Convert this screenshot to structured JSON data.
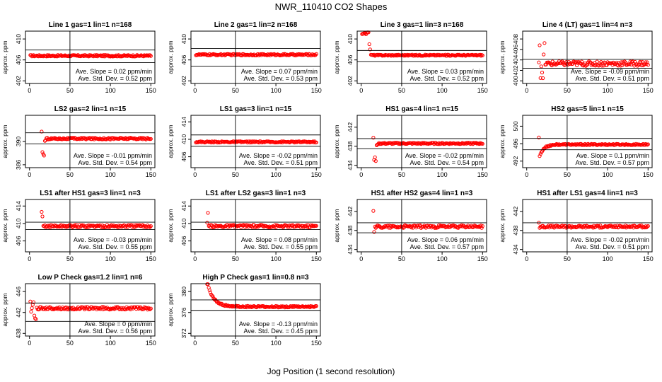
{
  "page": {
    "title": "NWR_110410  CO2 Shapes",
    "xlabel": "Jog Position (1 second resolution)"
  },
  "chart_data": [
    {
      "type": "scatter",
      "title": "Line 1 gas=1 lin=1 n=168",
      "ylabel": "approx. ppm",
      "xlim": [
        -5,
        155
      ],
      "ylim": [
        401.5,
        411.5
      ],
      "xticks": [
        0,
        50,
        100,
        150
      ],
      "yticks": [
        402,
        406,
        410
      ],
      "hlines": [
        407.9,
        405.5
      ],
      "vline": 50,
      "slope": "Ave. Slope =  0.02  ppm/min",
      "stddev": "Ave. Std. Dev. =  0.52  ppm",
      "shape": "flat",
      "start": 1,
      "base": 406.8,
      "noise": 0.15
    },
    {
      "type": "scatter",
      "title": "Line 2 gas=1 lin=2 n=168",
      "ylabel": "approx. ppm",
      "xlim": [
        -5,
        155
      ],
      "ylim": [
        401.5,
        411.5
      ],
      "xticks": [
        0,
        50,
        100,
        150
      ],
      "yticks": [
        402,
        406,
        410
      ],
      "hlines": [
        408.2,
        404.8
      ],
      "vline": 50,
      "slope": "Ave. Slope =  0.07  ppm/min",
      "stddev": "Ave. Std. Dev. =  0.53  ppm",
      "shape": "flat",
      "start": 1,
      "base": 407.0,
      "noise": 0.15
    },
    {
      "type": "scatter",
      "title": "Line 3 gas=1 lin=3 n=168",
      "ylabel": "approx. ppm",
      "xlim": [
        -5,
        155
      ],
      "ylim": [
        401.5,
        411.5
      ],
      "xticks": [
        0,
        50,
        100,
        150
      ],
      "yticks": [
        402,
        406,
        410
      ],
      "hlines": [
        407.8,
        405.7
      ],
      "vline": 50,
      "slope": "Ave. Slope =  0.03  ppm/min",
      "stddev": "Ave. Std. Dev. =  0.52  ppm",
      "shape": "spikeStart",
      "start": 1,
      "base": 406.9,
      "noise": 0.12
    },
    {
      "type": "scatter",
      "title": "Line 4 (LT) gas=1 lin=4 n=3",
      "ylabel": "approx. ppm",
      "xlim": [
        -5,
        155
      ],
      "ylim": [
        399.5,
        409.5
      ],
      "xticks": [
        0,
        50,
        100,
        150
      ],
      "yticks": [
        400,
        402,
        404,
        406,
        408
      ],
      "hlines": [
        404.1,
        402.4
      ],
      "vline": 50,
      "slope": "Ave. Slope = -0.09  ppm/min",
      "stddev": "Ave. Std. Dev. =  0.51  ppm",
      "shape": "scatterStart",
      "start": 15,
      "base": 403.3,
      "noise": 0.45
    },
    {
      "type": "scatter",
      "title": "LS2 gas=2 lin=1 n=15",
      "ylabel": "approx. ppm",
      "xlim": [
        -5,
        155
      ],
      "ylim": [
        385.5,
        394.5
      ],
      "xticks": [
        0,
        50,
        100,
        150
      ],
      "yticks": [
        386,
        390
      ],
      "hlines": [
        391.5,
        389.6
      ],
      "vline": 50,
      "slope": "Ave. Slope = -0.01  ppm/min",
      "stddev": "Ave. Std. Dev. =  0.54  ppm",
      "shape": "dipStart",
      "start": 15,
      "base": 390.5,
      "noise": 0.15
    },
    {
      "type": "scatter",
      "title": "LS1 gas=3 lin=1 n=15",
      "ylabel": "approx. ppm",
      "xlim": [
        -5,
        155
      ],
      "ylim": [
        403.5,
        415.5
      ],
      "xticks": [
        0,
        50,
        100,
        150
      ],
      "yticks": [
        406,
        410,
        414
      ],
      "hlines": [
        411.0,
        408.4
      ],
      "vline": 50,
      "slope": "Ave. Slope = -0.02  ppm/min",
      "stddev": "Ave. Std. Dev. =  0.51  ppm",
      "shape": "flat",
      "start": 1,
      "base": 409.4,
      "noise": 0.15
    },
    {
      "type": "scatter",
      "title": "HS1 gas=4 lin=1 n=15",
      "ylabel": "approx. ppm",
      "xlim": [
        -5,
        155
      ],
      "ylim": [
        433.5,
        444.5
      ],
      "xticks": [
        0,
        50,
        100,
        150
      ],
      "yticks": [
        434,
        438,
        442
      ],
      "hlines": [
        439.6,
        437.5
      ],
      "vline": 50,
      "slope": "Ave. Slope = -0.02  ppm/min",
      "stddev": "Ave. Std. Dev. =  0.54  ppm",
      "shape": "dipStart",
      "start": 15,
      "base": 438.6,
      "noise": 0.15
    },
    {
      "type": "scatter",
      "title": "HS2 gas=5 lin=1 n=15",
      "ylabel": "approx. ppm",
      "xlim": [
        -5,
        155
      ],
      "ylim": [
        490.5,
        502.5
      ],
      "xticks": [
        0,
        50,
        100,
        150
      ],
      "yticks": [
        492,
        496,
        500
      ],
      "hlines": [
        497.2,
        494.6
      ],
      "vline": 50,
      "slope": "Ave. Slope =  0.1  ppm/min",
      "stddev": "Ave. Std. Dev. =  0.57  ppm",
      "shape": "dipRecover",
      "start": 15,
      "base": 495.8,
      "noise": 0.15
    },
    {
      "type": "scatter",
      "title": "LS1 after HS1 gas=3 lin=1 n=3",
      "ylabel": "approx. ppm",
      "xlim": [
        -5,
        155
      ],
      "ylim": [
        403.5,
        415.5
      ],
      "xticks": [
        0,
        50,
        100,
        150
      ],
      "yticks": [
        406,
        410,
        414
      ],
      "hlines": [
        410.3,
        408.6
      ],
      "vline": 50,
      "slope": "Ave. Slope = -0.03  ppm/min",
      "stddev": "Ave. Std. Dev. =  0.55  ppm",
      "shape": "noisy",
      "start": 15,
      "base": 409.4,
      "noise": 0.3
    },
    {
      "type": "scatter",
      "title": "LS1 after LS2 gas=3 lin=1 n=3",
      "ylabel": "approx. ppm",
      "xlim": [
        -5,
        155
      ],
      "ylim": [
        403.5,
        415.5
      ],
      "xticks": [
        0,
        50,
        100,
        150
      ],
      "yticks": [
        406,
        410,
        414
      ],
      "hlines": [
        410.3,
        408.6
      ],
      "vline": 50,
      "slope": "Ave. Slope =  0.08  ppm/min",
      "stddev": "Ave. Std. Dev. =  0.55  ppm",
      "shape": "noisy",
      "start": 15,
      "base": 409.4,
      "noise": 0.3
    },
    {
      "type": "scatter",
      "title": "HS1 after HS2 gas=4 lin=1 n=3",
      "ylabel": "approx. ppm",
      "xlim": [
        -5,
        155
      ],
      "ylim": [
        433.5,
        444.5
      ],
      "xticks": [
        0,
        50,
        100,
        150
      ],
      "yticks": [
        434,
        438,
        442
      ],
      "hlines": [
        439.6,
        437.5
      ],
      "vline": 50,
      "slope": "Ave. Slope =  0.06  ppm/min",
      "stddev": "Ave. Std. Dev. =  0.57  ppm",
      "shape": "noisy",
      "start": 15,
      "base": 438.8,
      "noise": 0.3
    },
    {
      "type": "scatter",
      "title": "HS1 after LS1 gas=4 lin=1 n=3",
      "ylabel": "approx. ppm",
      "xlim": [
        -5,
        155
      ],
      "ylim": [
        433.5,
        444.5
      ],
      "xticks": [
        0,
        50,
        100,
        150
      ],
      "yticks": [
        434,
        438,
        442
      ],
      "hlines": [
        439.6,
        437.5
      ],
      "vline": 50,
      "slope": "Ave. Slope = -0.02  ppm/min",
      "stddev": "Ave. Std. Dev. =  0.51  ppm",
      "shape": "noisy",
      "start": 15,
      "base": 438.8,
      "noise": 0.25
    },
    {
      "type": "scatter",
      "title": "Low P Check gas=1.2 lin=1 n=6",
      "ylabel": "approx. ppm",
      "xlim": [
        -5,
        155
      ],
      "ylim": [
        437.5,
        447.5
      ],
      "xticks": [
        0,
        50,
        100,
        150
      ],
      "yticks": [
        438,
        442,
        446
      ],
      "hlines": [
        443.8,
        440.3
      ],
      "vline": 50,
      "slope": "Ave. Slope =  0  ppm/min",
      "stddev": "Ave. Std. Dev. =  0.56  ppm",
      "shape": "scatterLow",
      "start": 1,
      "base": 442.8,
      "noise": 0.25
    },
    {
      "type": "scatter",
      "title": "High P Check gas=1 lin=0.8 n=3",
      "ylabel": "approx. ppm",
      "xlim": [
        -5,
        155
      ],
      "ylim": [
        371.5,
        381.5
      ],
      "xticks": [
        0,
        50,
        100,
        150
      ],
      "yticks": [
        372,
        376,
        380
      ],
      "hlines": [
        378.4,
        376.4
      ],
      "vline": 50,
      "slope": "Ave. Slope = -0.13  ppm/min",
      "stddev": "Ave. Std. Dev. =  0.45  ppm",
      "shape": "decay",
      "start": 15,
      "base": 377.1,
      "noise": 0.15
    }
  ]
}
